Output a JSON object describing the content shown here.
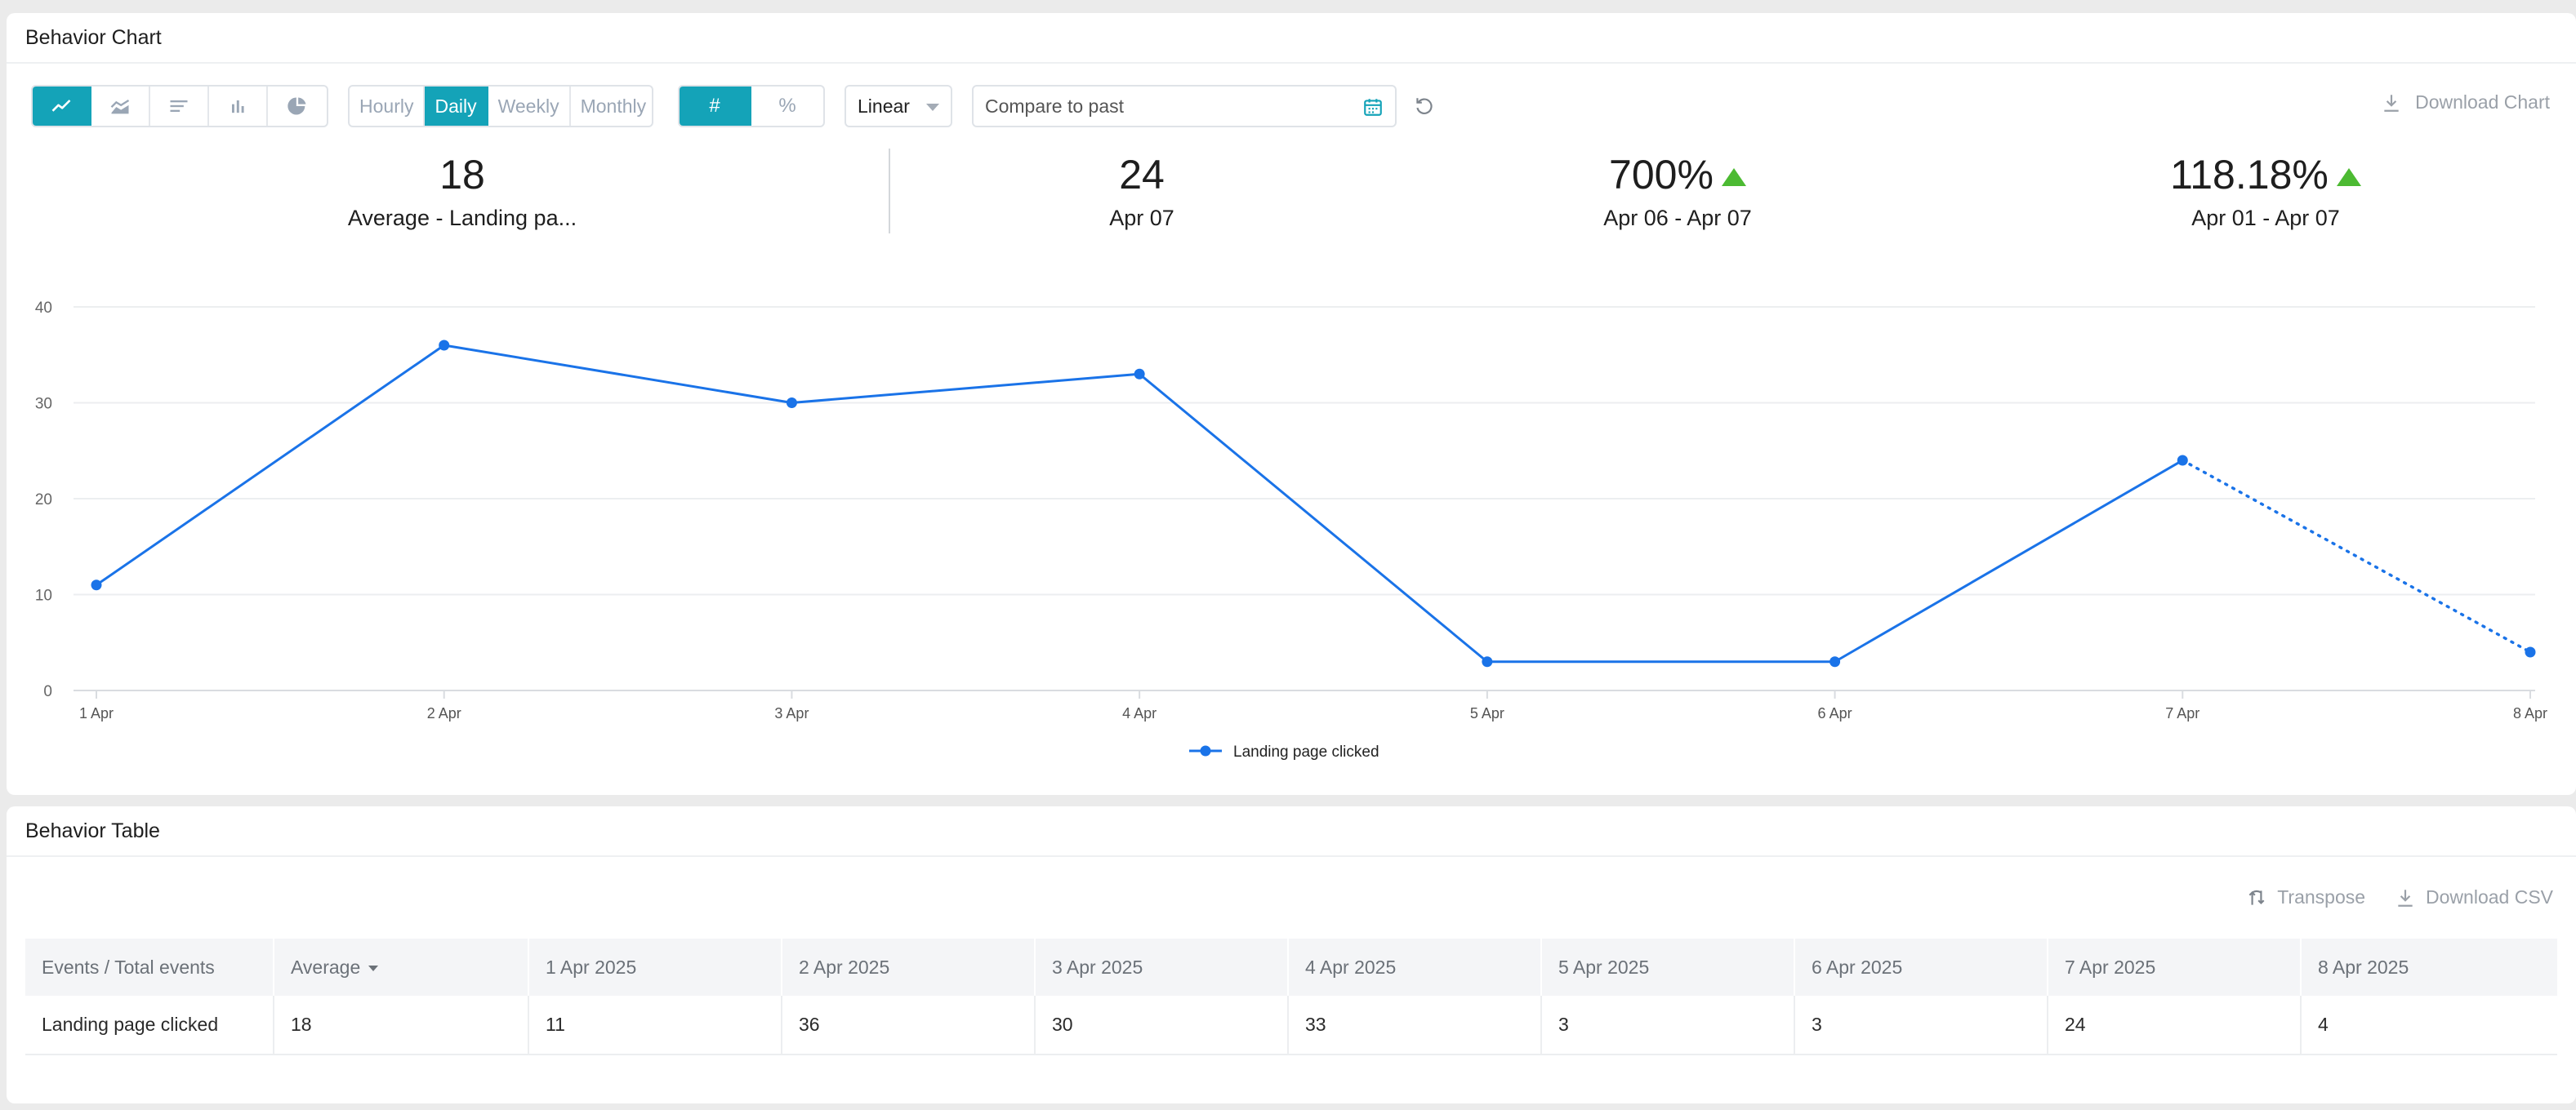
{
  "chart_panel": {
    "title": "Behavior Chart",
    "chart_types": [
      {
        "name": "line-chart-icon",
        "active": true
      },
      {
        "name": "area-chart-icon",
        "active": false
      },
      {
        "name": "horizontal-bar-icon",
        "active": false
      },
      {
        "name": "bar-chart-icon",
        "active": false
      },
      {
        "name": "pie-chart-icon",
        "active": false
      }
    ],
    "periods": [
      {
        "label": "Hourly",
        "active": false
      },
      {
        "label": "Daily",
        "active": true
      },
      {
        "label": "Weekly",
        "active": false
      },
      {
        "label": "Monthly",
        "active": false
      }
    ],
    "units": [
      {
        "label": "#",
        "active": true
      },
      {
        "label": "%",
        "active": false
      }
    ],
    "scale_select": "Linear",
    "compare_placeholder": "Compare to past",
    "download_label": "Download Chart"
  },
  "stats": [
    {
      "value": "18",
      "label": "Average - Landing pa...",
      "trend": ""
    },
    {
      "value": "24",
      "label": "Apr 07",
      "trend": ""
    },
    {
      "value": "700%",
      "label": "Apr 06 - Apr 07",
      "trend": "up"
    },
    {
      "value": "118.18%",
      "label": "Apr 01 - Apr 07",
      "trend": "up"
    }
  ],
  "chart_data": {
    "type": "line",
    "categories": [
      "1 Apr",
      "2 Apr",
      "3 Apr",
      "4 Apr",
      "5 Apr",
      "6 Apr",
      "7 Apr",
      "8 Apr"
    ],
    "series": [
      {
        "name": "Landing page clicked",
        "values": [
          11,
          36,
          30,
          33,
          3,
          3,
          24,
          4
        ],
        "color": "#1a73e8",
        "dotted_last_segment": true
      }
    ],
    "ylim": [
      0,
      40
    ],
    "yticks": [
      0,
      10,
      20,
      30,
      40
    ],
    "grid": true,
    "legend": "bottom-center"
  },
  "table_panel": {
    "title": "Behavior Table",
    "transpose_label": "Transpose",
    "download_csv_label": "Download CSV",
    "columns": [
      "Events / Total events",
      "Average",
      "1 Apr 2025",
      "2 Apr 2025",
      "3 Apr 2025",
      "4 Apr 2025",
      "5 Apr 2025",
      "6 Apr 2025",
      "7 Apr 2025",
      "8 Apr 2025"
    ],
    "rows": [
      [
        "Landing page clicked",
        "18",
        "11",
        "36",
        "30",
        "33",
        "3",
        "3",
        "24",
        "4"
      ]
    ]
  },
  "colors": {
    "accent": "#14a3b8",
    "series": "#1a73e8",
    "trend_up": "#4cba32"
  }
}
